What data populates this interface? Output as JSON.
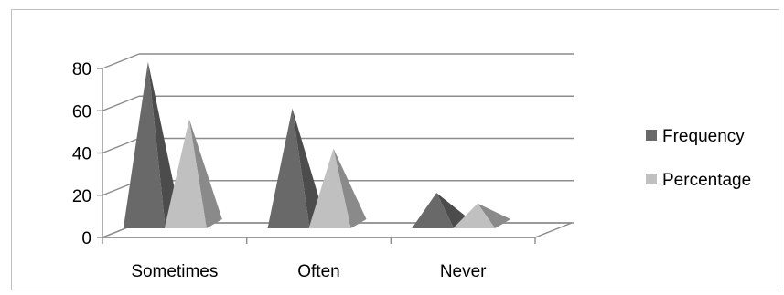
{
  "chart_data": {
    "type": "bar",
    "style": "3d-pyramid",
    "title": "",
    "xlabel": "",
    "ylabel": "",
    "categories": [
      "Sometimes",
      "Often",
      "Never"
    ],
    "series": [
      {
        "name": "Frequency",
        "values": [
          80,
          58,
          18
        ],
        "color": "#696969"
      },
      {
        "name": "Percentage",
        "values": [
          53,
          39,
          13
        ],
        "color": "#c0c0c0"
      }
    ],
    "ylim": [
      0,
      80
    ],
    "yticks": [
      "0",
      "20",
      "40",
      "60",
      "80"
    ],
    "grid": true,
    "legend": "right",
    "gridline_color": "#8c8c8c",
    "frame_color": "#bfbfbf"
  }
}
